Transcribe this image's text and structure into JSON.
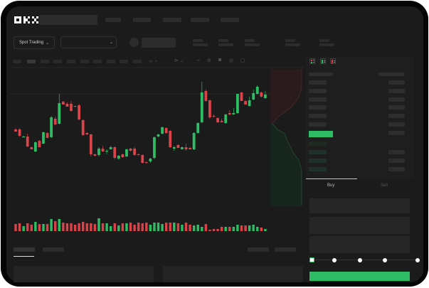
{
  "header": {
    "logo": "OKX"
  },
  "toolbar": {
    "market_type": "Spot Trading"
  },
  "trade": {
    "buy_tab": "Buy",
    "sell_tab": "Sell"
  },
  "colors": {
    "up": "#2ebd64",
    "down": "#d9434a",
    "accent": "#2ebd64",
    "background": "#1b1b1b"
  },
  "icons": [
    "chevron-down-icon",
    "indicator-icon",
    "line-tool-icon",
    "ruler-icon",
    "camera-icon",
    "settings-icon",
    "fullscreen-icon",
    "orderbook-both-icon",
    "orderbook-bids-icon",
    "orderbook-asks-icon"
  ],
  "chart_data": {
    "type": "candlestick",
    "ohlc": [
      [
        68,
        70,
        64,
        65
      ],
      [
        68,
        70,
        58,
        59
      ],
      [
        57,
        59,
        57,
        58
      ],
      [
        58,
        62,
        43,
        44
      ],
      [
        43,
        44,
        40,
        40
      ],
      [
        37,
        51,
        36,
        50
      ],
      [
        52,
        53,
        43,
        43
      ],
      [
        48,
        65,
        47,
        64
      ],
      [
        63,
        64,
        56,
        56
      ],
      [
        57,
        87,
        56,
        85
      ],
      [
        83,
        86,
        74,
        75
      ],
      [
        76,
        118,
        75,
        105
      ],
      [
        107,
        108,
        103,
        103
      ],
      [
        104,
        106,
        100,
        100
      ],
      [
        104,
        108,
        93,
        94
      ],
      [
        101,
        101,
        100,
        100
      ],
      [
        102,
        104,
        81,
        82
      ],
      [
        81,
        82,
        59,
        60
      ],
      [
        63,
        64,
        60,
        61
      ],
      [
        61,
        62,
        30,
        33
      ],
      [
        33,
        34,
        30,
        31
      ],
      [
        32,
        43,
        30,
        41
      ],
      [
        41,
        45,
        36,
        37
      ],
      [
        37,
        40,
        33,
        38
      ],
      [
        40,
        45,
        40,
        43
      ],
      [
        43,
        44,
        26,
        28
      ],
      [
        27,
        32,
        25,
        31
      ],
      [
        33,
        34,
        28,
        29
      ],
      [
        30,
        41,
        29,
        40
      ],
      [
        41,
        42,
        37,
        38
      ],
      [
        41,
        43,
        31,
        32
      ],
      [
        33,
        34,
        32,
        32
      ],
      [
        32,
        33,
        20,
        21
      ],
      [
        22,
        23,
        20,
        21
      ],
      [
        23,
        28,
        21,
        27
      ],
      [
        28,
        58,
        26,
        57
      ],
      [
        58,
        62,
        57,
        61
      ],
      [
        62,
        72,
        61,
        71
      ],
      [
        70,
        71,
        62,
        63
      ],
      [
        66,
        67,
        42,
        43
      ],
      [
        41,
        45,
        38,
        43
      ],
      [
        46,
        47,
        42,
        42
      ],
      [
        40,
        44,
        40,
        43
      ],
      [
        43,
        48,
        38,
        40
      ],
      [
        42,
        43,
        40,
        40
      ],
      [
        40,
        64,
        39,
        63
      ],
      [
        63,
        78,
        62,
        77
      ],
      [
        78,
        135,
        77,
        120
      ],
      [
        122,
        124,
        107,
        108
      ],
      [
        109,
        110,
        83,
        85
      ],
      [
        87,
        89,
        85,
        86
      ],
      [
        84,
        85,
        77,
        78
      ],
      [
        80,
        83,
        78,
        78
      ],
      [
        77,
        90,
        76,
        89
      ],
      [
        91,
        95,
        88,
        89
      ],
      [
        89,
        98,
        89,
        91
      ],
      [
        91,
        118,
        90,
        118
      ],
      [
        120,
        121,
        108,
        108
      ],
      [
        108,
        109,
        103,
        103
      ],
      [
        101,
        114,
        100,
        109
      ],
      [
        110,
        124,
        109,
        119
      ],
      [
        118,
        130,
        117,
        128
      ],
      [
        120,
        121,
        113,
        114
      ],
      [
        112,
        122,
        111,
        117
      ]
    ],
    "volume": [
      10,
      11,
      7,
      11,
      9,
      13,
      10,
      10,
      10,
      17,
      14,
      17,
      12,
      11,
      11,
      9,
      11,
      13,
      11,
      11,
      10,
      18,
      11,
      11,
      7,
      11,
      8,
      11,
      11,
      12,
      9,
      12,
      11,
      12,
      9,
      12,
      12,
      10,
      12,
      12,
      12,
      11,
      9,
      12,
      9,
      8,
      9,
      6,
      10,
      2,
      3,
      3,
      6,
      6,
      6,
      6,
      9,
      8,
      8,
      8,
      9,
      6,
      5,
      3
    ]
  }
}
